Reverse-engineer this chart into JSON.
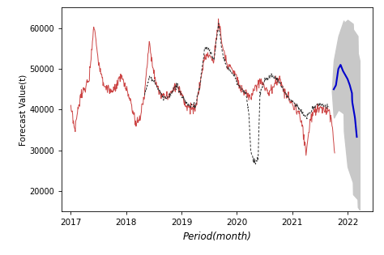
{
  "title": "",
  "xlabel": "Period(month)",
  "ylabel": "Forecast Value(t)",
  "xlim_start": 2016.83,
  "xlim_end": 2022.45,
  "ylim": [
    15000,
    65000
  ],
  "yticks": [
    20000,
    30000,
    40000,
    50000,
    60000
  ],
  "xticks": [
    2017,
    2018,
    2019,
    2020,
    2021,
    2022
  ],
  "background_color": "#ffffff"
}
